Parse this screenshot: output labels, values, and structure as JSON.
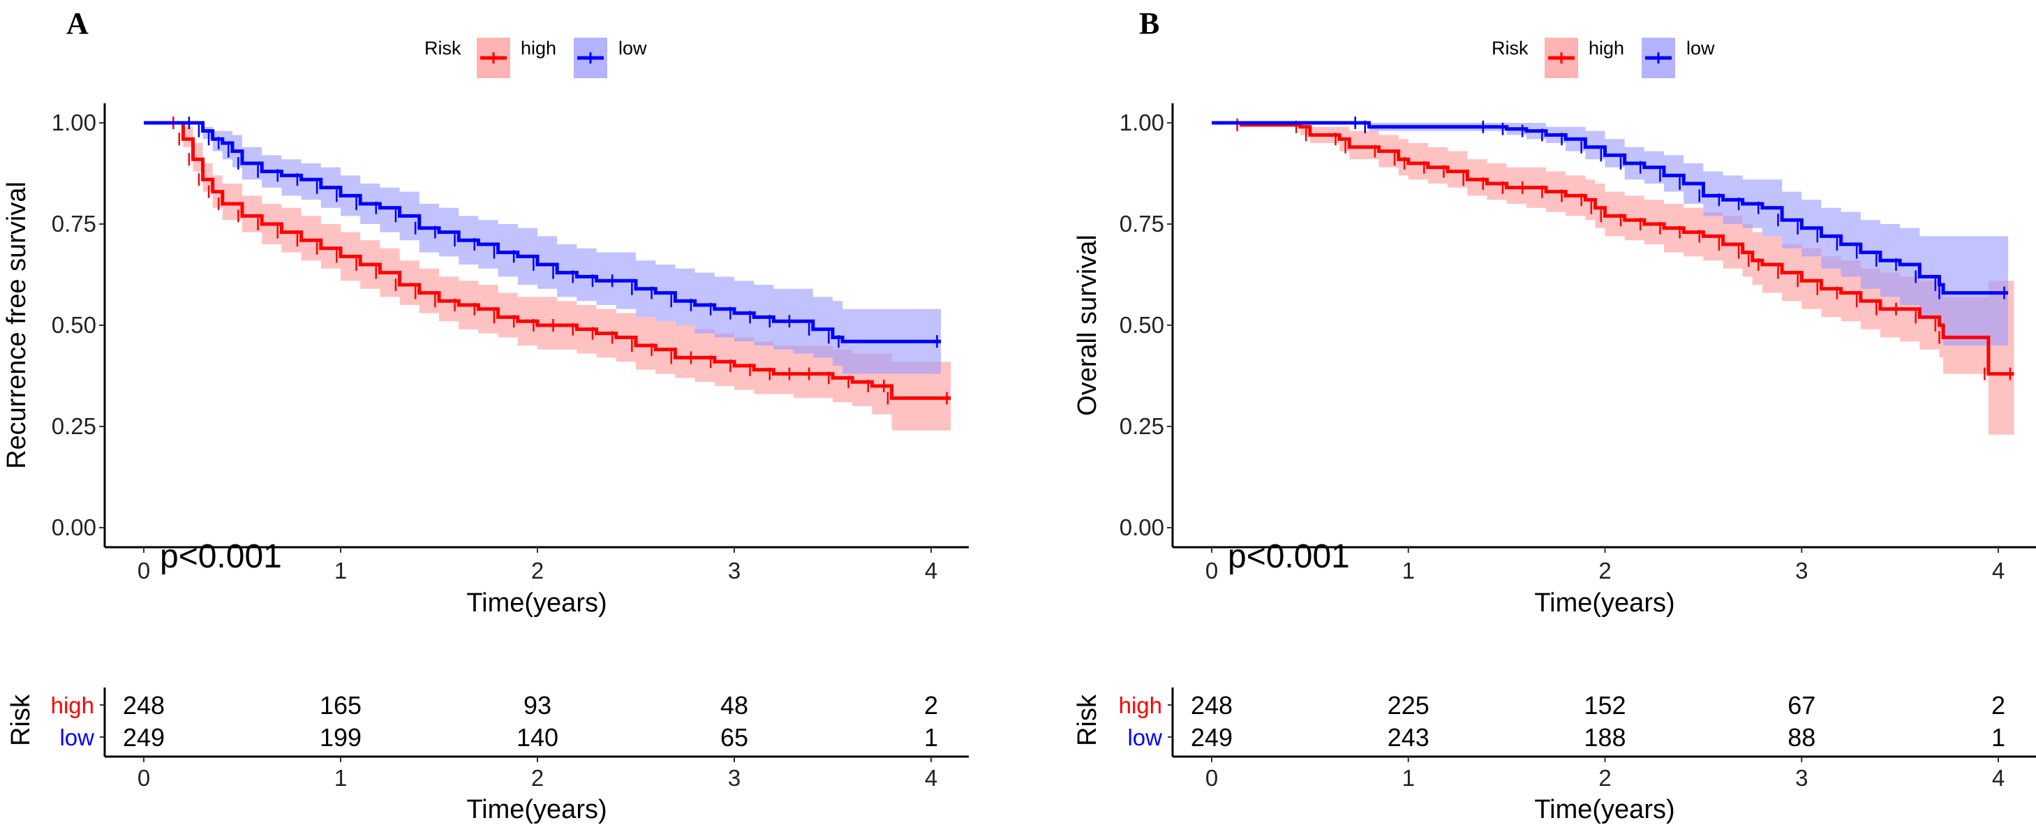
{
  "chart_data": [
    {
      "type": "line",
      "panel_label": "A",
      "title": "",
      "xlabel": "Time(years)",
      "ylabel": "Recurrence free survival",
      "xlim": [
        -0.2,
        4.2
      ],
      "ylim": [
        -0.05,
        1.05
      ],
      "x_ticks": [
        "0",
        "1",
        "2",
        "3",
        "4"
      ],
      "y_ticks": [
        "0.00",
        "0.25",
        "0.50",
        "0.75",
        "1.00"
      ],
      "legend": {
        "title": "Risk",
        "entries": [
          "high",
          "low"
        ],
        "position": "top-center"
      },
      "annotation": "p<0.001",
      "series": [
        {
          "name": "high",
          "color": "#FF0000",
          "ci_color": "#FF9999",
          "x": [
            0,
            0.17,
            0.2,
            0.25,
            0.3,
            0.35,
            0.4,
            0.5,
            0.6,
            0.7,
            0.8,
            0.9,
            1.0,
            1.1,
            1.2,
            1.3,
            1.4,
            1.5,
            1.6,
            1.7,
            1.8,
            1.9,
            2.0,
            2.1,
            2.2,
            2.3,
            2.4,
            2.5,
            2.6,
            2.7,
            2.8,
            2.9,
            3.0,
            3.1,
            3.2,
            3.3,
            3.4,
            3.5,
            3.6,
            3.7,
            3.78,
            3.8,
            4.1
          ],
          "y": [
            1.0,
            1.0,
            0.96,
            0.91,
            0.86,
            0.83,
            0.8,
            0.77,
            0.75,
            0.73,
            0.71,
            0.69,
            0.67,
            0.65,
            0.63,
            0.6,
            0.58,
            0.56,
            0.55,
            0.54,
            0.52,
            0.51,
            0.5,
            0.5,
            0.49,
            0.48,
            0.47,
            0.45,
            0.44,
            0.42,
            0.42,
            0.41,
            0.4,
            0.39,
            0.38,
            0.38,
            0.38,
            0.37,
            0.36,
            0.35,
            0.35,
            0.32,
            0.32
          ],
          "ci_lower": [
            1.0,
            1.0,
            0.94,
            0.88,
            0.83,
            0.79,
            0.76,
            0.73,
            0.7,
            0.68,
            0.66,
            0.64,
            0.61,
            0.59,
            0.57,
            0.55,
            0.53,
            0.51,
            0.49,
            0.48,
            0.47,
            0.45,
            0.44,
            0.44,
            0.43,
            0.42,
            0.41,
            0.39,
            0.38,
            0.37,
            0.36,
            0.35,
            0.34,
            0.33,
            0.33,
            0.32,
            0.32,
            0.31,
            0.3,
            0.28,
            0.28,
            0.24,
            0.24
          ],
          "ci_upper": [
            1.0,
            1.0,
            0.99,
            0.95,
            0.9,
            0.87,
            0.85,
            0.82,
            0.8,
            0.79,
            0.77,
            0.75,
            0.73,
            0.71,
            0.69,
            0.66,
            0.64,
            0.62,
            0.61,
            0.6,
            0.58,
            0.57,
            0.57,
            0.56,
            0.55,
            0.54,
            0.53,
            0.52,
            0.51,
            0.5,
            0.49,
            0.48,
            0.47,
            0.46,
            0.45,
            0.45,
            0.45,
            0.44,
            0.43,
            0.43,
            0.43,
            0.41,
            0.41
          ]
        },
        {
          "name": "low",
          "color": "#0000FF",
          "ci_color": "#9999FF",
          "x": [
            0,
            0.25,
            0.3,
            0.35,
            0.4,
            0.45,
            0.5,
            0.6,
            0.7,
            0.8,
            0.9,
            1.0,
            1.1,
            1.2,
            1.3,
            1.4,
            1.5,
            1.6,
            1.7,
            1.8,
            1.9,
            2.0,
            2.1,
            2.2,
            2.3,
            2.4,
            2.5,
            2.6,
            2.7,
            2.8,
            2.9,
            3.0,
            3.1,
            3.2,
            3.3,
            3.4,
            3.5,
            3.55,
            4.05
          ],
          "y": [
            1.0,
            1.0,
            0.98,
            0.96,
            0.95,
            0.93,
            0.9,
            0.88,
            0.87,
            0.86,
            0.84,
            0.82,
            0.8,
            0.79,
            0.77,
            0.74,
            0.73,
            0.71,
            0.7,
            0.68,
            0.67,
            0.65,
            0.63,
            0.62,
            0.61,
            0.61,
            0.59,
            0.58,
            0.56,
            0.55,
            0.54,
            0.53,
            0.52,
            0.51,
            0.51,
            0.49,
            0.47,
            0.46,
            0.46
          ],
          "ci_lower": [
            1.0,
            1.0,
            0.96,
            0.93,
            0.91,
            0.89,
            0.86,
            0.84,
            0.82,
            0.81,
            0.79,
            0.77,
            0.75,
            0.73,
            0.71,
            0.68,
            0.67,
            0.65,
            0.64,
            0.62,
            0.6,
            0.59,
            0.57,
            0.56,
            0.55,
            0.54,
            0.52,
            0.51,
            0.5,
            0.48,
            0.47,
            0.46,
            0.45,
            0.44,
            0.43,
            0.42,
            0.4,
            0.38,
            0.38
          ],
          "ci_upper": [
            1.0,
            1.0,
            0.99,
            0.98,
            0.98,
            0.97,
            0.94,
            0.92,
            0.91,
            0.9,
            0.89,
            0.87,
            0.85,
            0.84,
            0.83,
            0.8,
            0.79,
            0.77,
            0.76,
            0.75,
            0.74,
            0.72,
            0.7,
            0.69,
            0.68,
            0.68,
            0.66,
            0.65,
            0.64,
            0.63,
            0.62,
            0.61,
            0.6,
            0.59,
            0.59,
            0.57,
            0.56,
            0.54,
            0.54
          ]
        }
      ],
      "risk_table": {
        "title": "Risk",
        "xlabel": "Time(years)",
        "time_points": [
          "0",
          "1",
          "2",
          "3",
          "4"
        ],
        "rows": [
          {
            "group": "high",
            "color": "#FF0000",
            "values": [
              "248",
              "165",
              "93",
              "48",
              "2"
            ]
          },
          {
            "group": "low",
            "color": "#0000FF",
            "values": [
              "249",
              "199",
              "140",
              "65",
              "1"
            ]
          }
        ]
      }
    },
    {
      "type": "line",
      "panel_label": "B",
      "title": "",
      "xlabel": "Time(years)",
      "ylabel": "Overall survival",
      "xlim": [
        -0.2,
        4.2
      ],
      "ylim": [
        -0.05,
        1.05
      ],
      "x_ticks": [
        "0",
        "1",
        "2",
        "3",
        "4"
      ],
      "y_ticks": [
        "0.00",
        "0.25",
        "0.50",
        "0.75",
        "1.00"
      ],
      "legend": {
        "title": "Risk",
        "entries": [
          "high",
          "low"
        ],
        "position": "top-center"
      },
      "annotation": "p<0.001",
      "series": [
        {
          "name": "high",
          "color": "#FF0000",
          "ci_color": "#FF9999",
          "x": [
            0,
            0.15,
            0.45,
            0.5,
            0.65,
            0.7,
            0.85,
            0.95,
            1.0,
            1.1,
            1.2,
            1.3,
            1.4,
            1.5,
            1.6,
            1.7,
            1.8,
            1.9,
            1.95,
            2.0,
            2.1,
            2.2,
            2.3,
            2.4,
            2.5,
            2.6,
            2.7,
            2.75,
            2.8,
            2.9,
            3.0,
            3.1,
            3.2,
            3.3,
            3.4,
            3.5,
            3.6,
            3.7,
            3.72,
            3.95,
            4.08
          ],
          "y": [
            1.0,
            0.995,
            0.99,
            0.97,
            0.96,
            0.94,
            0.93,
            0.91,
            0.9,
            0.89,
            0.88,
            0.86,
            0.85,
            0.84,
            0.84,
            0.83,
            0.82,
            0.81,
            0.79,
            0.77,
            0.76,
            0.75,
            0.74,
            0.73,
            0.72,
            0.7,
            0.68,
            0.66,
            0.65,
            0.63,
            0.61,
            0.59,
            0.58,
            0.56,
            0.54,
            0.54,
            0.52,
            0.5,
            0.47,
            0.38,
            0.38
          ],
          "ci_lower": [
            1.0,
            0.99,
            0.97,
            0.95,
            0.93,
            0.91,
            0.89,
            0.87,
            0.86,
            0.85,
            0.84,
            0.82,
            0.81,
            0.8,
            0.79,
            0.78,
            0.77,
            0.76,
            0.74,
            0.72,
            0.71,
            0.7,
            0.68,
            0.67,
            0.66,
            0.64,
            0.62,
            0.6,
            0.58,
            0.56,
            0.54,
            0.52,
            0.51,
            0.49,
            0.47,
            0.46,
            0.44,
            0.42,
            0.38,
            0.23,
            0.23
          ],
          "ci_upper": [
            1.0,
            1.0,
            1.0,
            0.99,
            0.99,
            0.98,
            0.97,
            0.96,
            0.95,
            0.94,
            0.93,
            0.91,
            0.9,
            0.89,
            0.89,
            0.88,
            0.87,
            0.86,
            0.85,
            0.83,
            0.82,
            0.81,
            0.8,
            0.79,
            0.78,
            0.77,
            0.75,
            0.73,
            0.72,
            0.7,
            0.69,
            0.67,
            0.66,
            0.64,
            0.63,
            0.62,
            0.61,
            0.59,
            0.57,
            0.61,
            0.61
          ]
        },
        {
          "name": "low",
          "color": "#0000FF",
          "ci_color": "#9999FF",
          "x": [
            0,
            0.75,
            0.8,
            1.4,
            1.5,
            1.6,
            1.7,
            1.8,
            1.9,
            2.0,
            2.1,
            2.2,
            2.3,
            2.4,
            2.5,
            2.6,
            2.7,
            2.8,
            2.9,
            3.0,
            3.1,
            3.2,
            3.3,
            3.4,
            3.5,
            3.6,
            3.7,
            3.72,
            4.05
          ],
          "y": [
            1.0,
            1.0,
            0.99,
            0.99,
            0.985,
            0.98,
            0.97,
            0.96,
            0.94,
            0.92,
            0.9,
            0.89,
            0.87,
            0.85,
            0.82,
            0.81,
            0.8,
            0.79,
            0.76,
            0.74,
            0.72,
            0.7,
            0.68,
            0.66,
            0.65,
            0.62,
            0.6,
            0.58,
            0.58
          ],
          "ci_lower": [
            1.0,
            1.0,
            0.98,
            0.98,
            0.97,
            0.96,
            0.95,
            0.93,
            0.91,
            0.89,
            0.86,
            0.85,
            0.83,
            0.8,
            0.77,
            0.75,
            0.74,
            0.72,
            0.69,
            0.67,
            0.64,
            0.62,
            0.59,
            0.57,
            0.55,
            0.52,
            0.49,
            0.45,
            0.45
          ],
          "ci_upper": [
            1.0,
            1.0,
            1.0,
            1.0,
            1.0,
            1.0,
            0.99,
            0.99,
            0.98,
            0.96,
            0.94,
            0.93,
            0.92,
            0.9,
            0.88,
            0.87,
            0.86,
            0.86,
            0.83,
            0.81,
            0.79,
            0.78,
            0.76,
            0.75,
            0.74,
            0.72,
            0.72,
            0.72,
            0.72
          ]
        }
      ],
      "risk_table": {
        "title": "Risk",
        "xlabel": "Time(years)",
        "time_points": [
          "0",
          "1",
          "2",
          "3",
          "4"
        ],
        "rows": [
          {
            "group": "high",
            "color": "#FF0000",
            "values": [
              "248",
              "225",
              "152",
              "67",
              "2"
            ]
          },
          {
            "group": "low",
            "color": "#0000FF",
            "values": [
              "249",
              "243",
              "188",
              "88",
              "1"
            ]
          }
        ]
      }
    }
  ]
}
